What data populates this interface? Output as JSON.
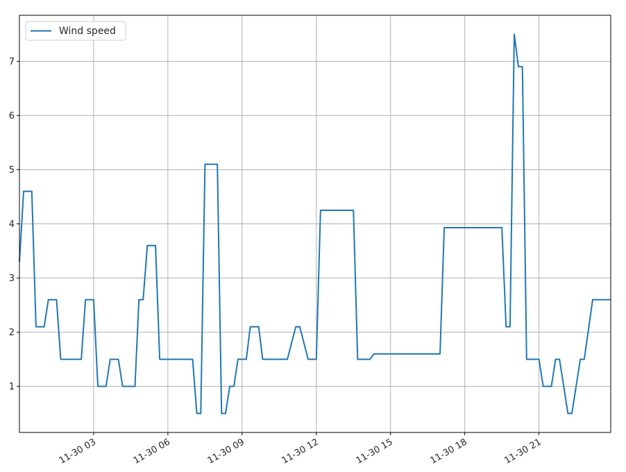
{
  "chart_data": {
    "type": "line",
    "legend": {
      "placement": "top-left",
      "entries": [
        "Wind speed"
      ]
    },
    "grid": true,
    "x_unit": "hours",
    "xlim": [
      0,
      23.9
    ],
    "ylim": [
      0.15,
      7.85
    ],
    "x_ticks": [
      {
        "x": 3,
        "label": "11-30 03"
      },
      {
        "x": 6,
        "label": "11-30 06"
      },
      {
        "x": 9,
        "label": "11-30 09"
      },
      {
        "x": 12,
        "label": "11-30 12"
      },
      {
        "x": 15,
        "label": "11-30 15"
      },
      {
        "x": 18,
        "label": "11-30 18"
      },
      {
        "x": 21,
        "label": "11-30 21"
      }
    ],
    "y_ticks": [
      {
        "y": 1,
        "label": "1"
      },
      {
        "y": 2,
        "label": "2"
      },
      {
        "y": 3,
        "label": "3"
      },
      {
        "y": 4,
        "label": "4"
      },
      {
        "y": 5,
        "label": "5"
      },
      {
        "y": 6,
        "label": "6"
      },
      {
        "y": 7,
        "label": "7"
      }
    ],
    "series": [
      {
        "name": "Wind speed",
        "color": "#1f77b4",
        "x": [
          0,
          0.17,
          0.5,
          0.67,
          1.0,
          1.17,
          1.5,
          1.67,
          2.5,
          2.67,
          3.0,
          3.17,
          3.5,
          3.67,
          4.0,
          4.17,
          4.67,
          4.83,
          5.0,
          5.17,
          5.5,
          5.67,
          6.0,
          6.5,
          7.0,
          7.17,
          7.33,
          7.5,
          7.67,
          8.0,
          8.17,
          8.33,
          8.5,
          8.67,
          8.83,
          9.17,
          9.33,
          9.67,
          9.83,
          10.17,
          10.5,
          10.83,
          11.17,
          11.33,
          11.67,
          11.83,
          12.0,
          12.17,
          13.5,
          13.67,
          14.17,
          14.33,
          15.0,
          16.0,
          17.0,
          17.17,
          19.5,
          19.67,
          19.83,
          20.0,
          20.17,
          20.33,
          20.5,
          20.67,
          21.0,
          21.17,
          21.5,
          21.67,
          21.83,
          22.17,
          22.33,
          22.67,
          22.83,
          23.17,
          23.5,
          23.9
        ],
        "values": [
          3.3,
          4.6,
          4.6,
          2.1,
          2.1,
          2.6,
          2.6,
          1.5,
          1.5,
          2.6,
          2.6,
          1.0,
          1.0,
          1.5,
          1.5,
          1.0,
          1.0,
          2.6,
          2.6,
          3.6,
          3.6,
          1.5,
          1.5,
          1.5,
          1.5,
          0.5,
          0.5,
          5.1,
          5.1,
          5.1,
          0.5,
          0.5,
          1.0,
          1.0,
          1.5,
          1.5,
          2.1,
          2.1,
          1.5,
          1.5,
          1.5,
          1.5,
          2.1,
          2.1,
          1.5,
          1.5,
          1.5,
          4.25,
          4.25,
          1.5,
          1.5,
          1.6,
          1.6,
          1.6,
          1.6,
          3.93,
          3.93,
          2.1,
          2.1,
          7.5,
          6.9,
          6.9,
          1.5,
          1.5,
          1.5,
          1.0,
          1.0,
          1.5,
          1.5,
          0.5,
          0.5,
          1.5,
          1.5,
          2.6,
          2.6,
          2.6
        ]
      }
    ]
  }
}
